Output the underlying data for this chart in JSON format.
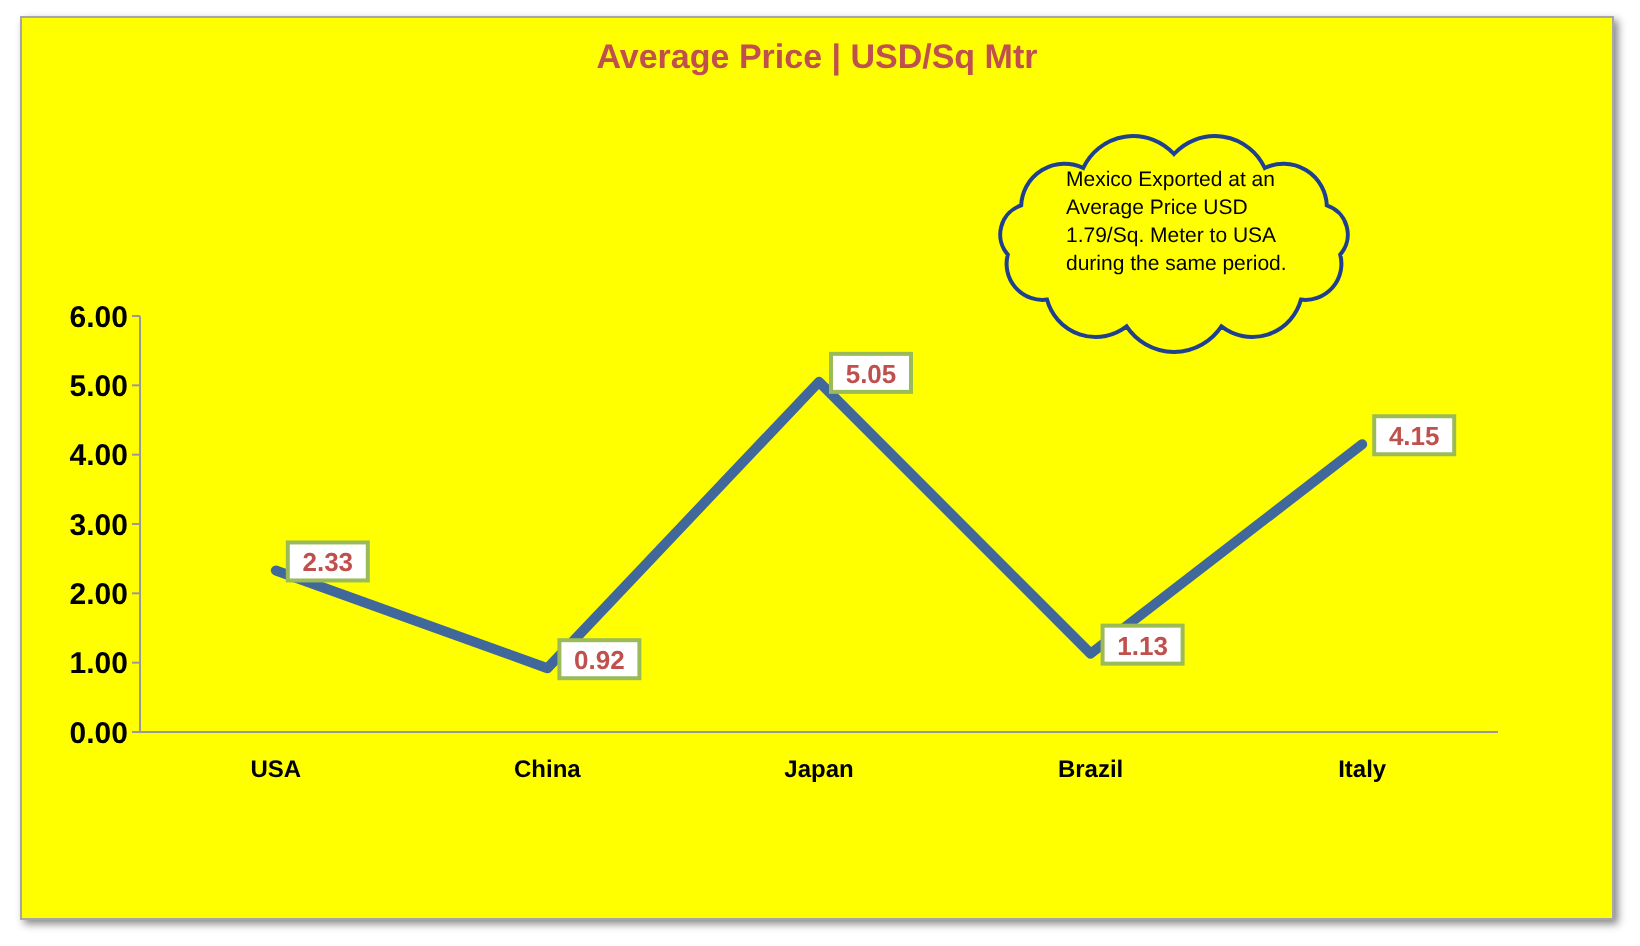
{
  "chart_data": {
    "type": "line",
    "title": "Average Price | USD/Sq Mtr",
    "annotations": [
      "Mexico Exported at an Average Price USD 1.79/Sq. Meter to USA during the same period."
    ],
    "categories": [
      "USA",
      "China",
      "Japan",
      "Brazil",
      "Italy"
    ],
    "series": [
      {
        "color": "#41689a",
        "values": [
          2.33,
          0.92,
          5.05,
          1.13,
          4.15
        ]
      }
    ],
    "ylim": [
      0,
      6
    ],
    "yticks": [
      {
        "value": 0,
        "label": "0.00"
      },
      {
        "value": 1,
        "label": "1.00"
      },
      {
        "value": 2,
        "label": "2.00"
      },
      {
        "value": 3,
        "label": "3.00"
      },
      {
        "value": 4,
        "label": "4.00"
      },
      {
        "value": 5,
        "label": "5.00"
      },
      {
        "value": 6,
        "label": "6.00"
      }
    ],
    "data_labels": true
  }
}
